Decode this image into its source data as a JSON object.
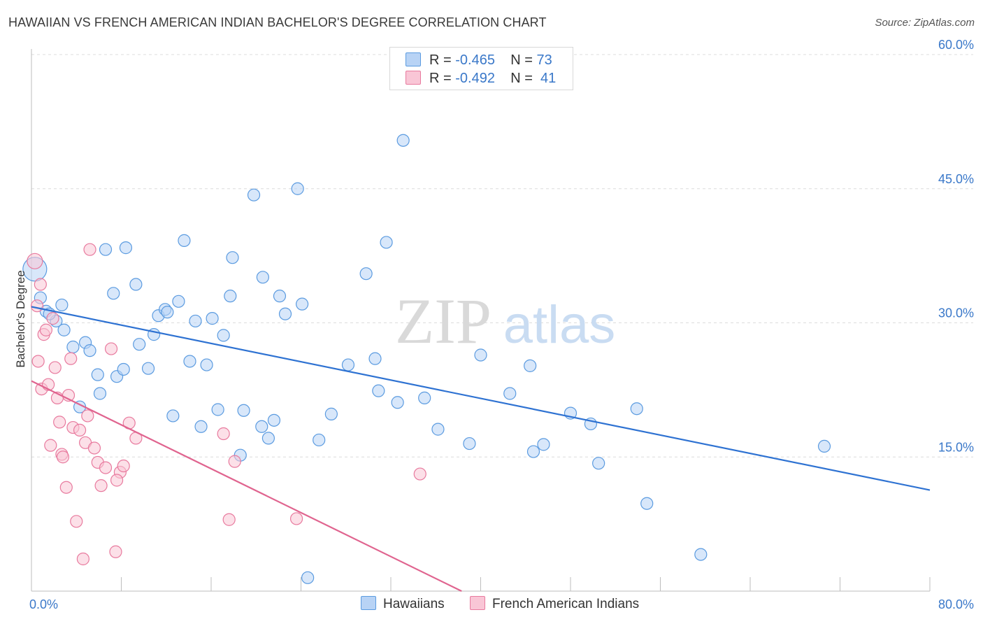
{
  "title": "HAWAIIAN VS FRENCH AMERICAN INDIAN BACHELOR'S DEGREE CORRELATION CHART",
  "source": "Source: ZipAtlas.com",
  "watermark": {
    "zip": "ZIP",
    "atlas": "atlas"
  },
  "legend": {
    "r_label": "R =",
    "n_label": "N =",
    "rows": [
      {
        "r": "-0.465",
        "n": "73",
        "color": "#5b9be0",
        "fill": "#b8d3f5"
      },
      {
        "r": "-0.492",
        "n": "41",
        "color": "#e87a9e",
        "fill": "#f9c6d6"
      }
    ]
  },
  "chart_data": {
    "type": "scatter",
    "title": "HAWAIIAN VS FRENCH AMERICAN INDIAN BACHELOR'S DEGREE CORRELATION CHART",
    "xlabel": "",
    "ylabel": "Bachelor's Degree",
    "xlim": [
      0,
      80
    ],
    "ylim": [
      0,
      60
    ],
    "x_tick_labels": [
      "0.0%",
      "80.0%"
    ],
    "y_ticks": [
      15,
      30,
      45,
      60
    ],
    "y_tick_labels": [
      "15.0%",
      "30.0%",
      "45.0%",
      "60.0%"
    ],
    "grid": true,
    "series": [
      {
        "name": "Hawaiians",
        "color": "#5b9be0",
        "fill": "#b8d3f5",
        "trend": {
          "x": [
            0,
            80
          ],
          "y": [
            31.8,
            11.3
          ]
        },
        "points": [
          [
            0.3,
            36
          ],
          [
            0.8,
            32.8
          ],
          [
            1.3,
            31.3
          ],
          [
            2.2,
            30.2
          ],
          [
            2.9,
            29.2
          ],
          [
            2.7,
            32
          ],
          [
            3.7,
            27.3
          ],
          [
            4.3,
            20.6
          ],
          [
            4.8,
            27.8
          ],
          [
            5.2,
            26.9
          ],
          [
            5.9,
            24.2
          ],
          [
            6.1,
            22.1
          ],
          [
            6.6,
            38.2
          ],
          [
            7.3,
            33.3
          ],
          [
            7.6,
            24
          ],
          [
            8.2,
            24.8
          ],
          [
            8.4,
            38.4
          ],
          [
            9.3,
            34.3
          ],
          [
            9.6,
            27.6
          ],
          [
            10.4,
            24.9
          ],
          [
            10.9,
            28.7
          ],
          [
            11.3,
            30.8
          ],
          [
            11.9,
            31.5
          ],
          [
            12.1,
            31.2
          ],
          [
            12.6,
            19.6
          ],
          [
            13.1,
            32.4
          ],
          [
            13.6,
            39.2
          ],
          [
            14.1,
            25.7
          ],
          [
            14.6,
            30.2
          ],
          [
            15.1,
            18.4
          ],
          [
            15.6,
            25.3
          ],
          [
            16.1,
            30.5
          ],
          [
            16.6,
            20.3
          ],
          [
            17.1,
            28.6
          ],
          [
            17.7,
            33
          ],
          [
            17.9,
            37.3
          ],
          [
            18.6,
            15.2
          ],
          [
            18.9,
            20.2
          ],
          [
            19.8,
            44.3
          ],
          [
            20.5,
            18.4
          ],
          [
            20.6,
            35.1
          ],
          [
            21.1,
            17.1
          ],
          [
            21.6,
            19.1
          ],
          [
            22.1,
            33
          ],
          [
            22.6,
            31
          ],
          [
            23.7,
            45
          ],
          [
            24.1,
            32.1
          ],
          [
            24.6,
            1.5
          ],
          [
            25.6,
            16.9
          ],
          [
            26.7,
            19.8
          ],
          [
            28.2,
            25.3
          ],
          [
            29.8,
            35.5
          ],
          [
            30.6,
            26
          ],
          [
            30.9,
            22.4
          ],
          [
            31.6,
            39
          ],
          [
            32.6,
            21.1
          ],
          [
            33.1,
            50.4
          ],
          [
            35,
            21.6
          ],
          [
            36.2,
            18.1
          ],
          [
            39,
            16.5
          ],
          [
            40,
            26.4
          ],
          [
            42.6,
            22.1
          ],
          [
            44.4,
            25.2
          ],
          [
            44.7,
            15.6
          ],
          [
            45.6,
            16.4
          ],
          [
            48,
            19.9
          ],
          [
            49.8,
            18.7
          ],
          [
            50.5,
            14.3
          ],
          [
            53.9,
            20.4
          ],
          [
            54.8,
            9.8
          ],
          [
            59.6,
            4.1
          ],
          [
            70.6,
            16.2
          ],
          [
            1.6,
            31
          ]
        ]
      },
      {
        "name": "French American Indians",
        "color": "#e87a9e",
        "fill": "#f9c6d6",
        "trend": {
          "x": [
            0,
            38.3
          ],
          "y": [
            23.5,
            0
          ]
        },
        "points": [
          [
            0.3,
            36.9
          ],
          [
            0.5,
            31.9
          ],
          [
            0.6,
            25.7
          ],
          [
            0.8,
            34.3
          ],
          [
            0.9,
            22.6
          ],
          [
            1.1,
            28.7
          ],
          [
            1.3,
            29.2
          ],
          [
            1.5,
            23.1
          ],
          [
            1.7,
            16.3
          ],
          [
            1.9,
            30.5
          ],
          [
            2.1,
            25
          ],
          [
            2.3,
            21.6
          ],
          [
            2.5,
            18.9
          ],
          [
            2.7,
            15.3
          ],
          [
            2.8,
            15
          ],
          [
            3.1,
            11.6
          ],
          [
            3.3,
            21.9
          ],
          [
            3.5,
            26
          ],
          [
            3.7,
            18.3
          ],
          [
            4,
            7.8
          ],
          [
            4.3,
            18
          ],
          [
            4.6,
            3.6
          ],
          [
            4.8,
            16.6
          ],
          [
            5,
            19.6
          ],
          [
            5.2,
            38.2
          ],
          [
            5.6,
            16
          ],
          [
            5.9,
            14.4
          ],
          [
            6.2,
            11.8
          ],
          [
            6.6,
            13.8
          ],
          [
            7.1,
            27.1
          ],
          [
            7.5,
            4.4
          ],
          [
            7.9,
            13.3
          ],
          [
            8.2,
            14
          ],
          [
            8.7,
            18.8
          ],
          [
            9.3,
            17.1
          ],
          [
            17.1,
            17.6
          ],
          [
            17.6,
            8
          ],
          [
            18.1,
            14.5
          ],
          [
            23.6,
            8.1
          ],
          [
            34.6,
            13.1
          ],
          [
            7.6,
            12.4
          ]
        ]
      }
    ]
  }
}
